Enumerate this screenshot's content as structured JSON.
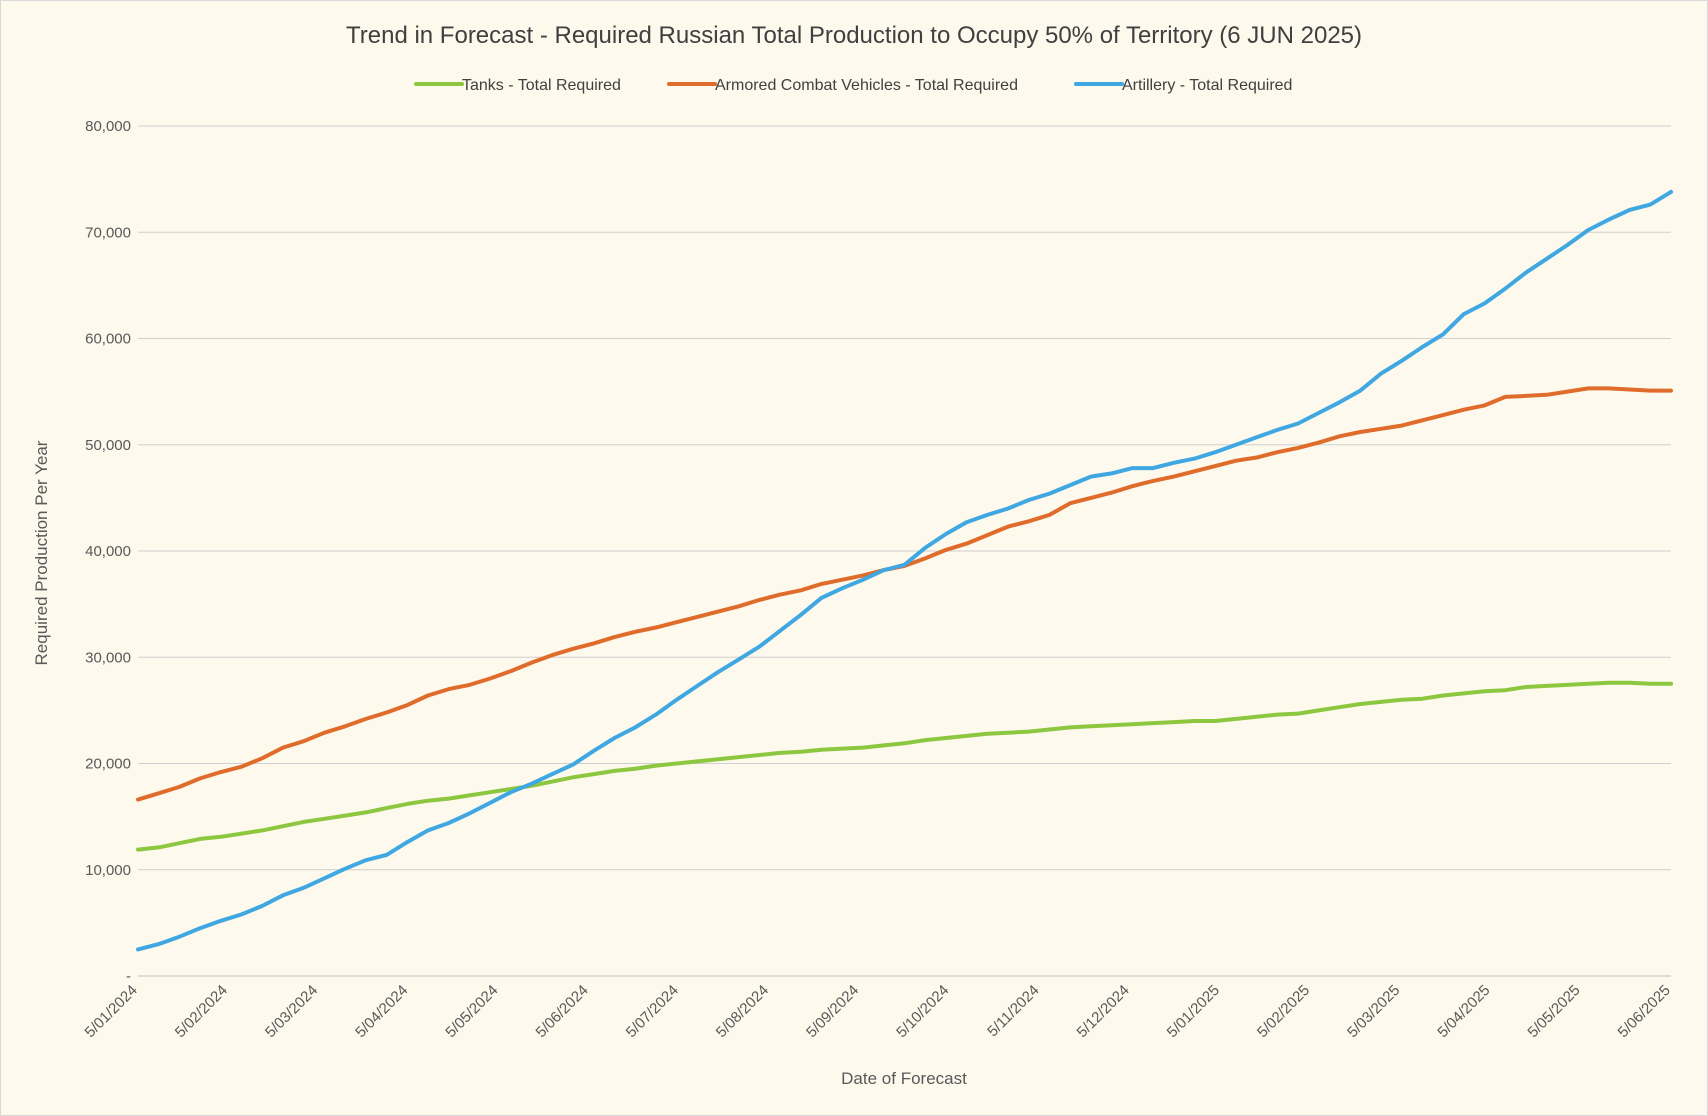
{
  "chart_data": {
    "type": "line",
    "title": "Trend in Forecast - Required Russian Total Production to Occupy 50% of Territory (6 JUN 2025)",
    "xlabel": "Date of Forecast",
    "ylabel": "Required Production Per Year",
    "x_tick_labels": [
      "5/01/2024",
      "5/02/2024",
      "5/03/2024",
      "5/04/2024",
      "5/05/2024",
      "5/06/2024",
      "5/07/2024",
      "5/08/2024",
      "5/09/2024",
      "5/10/2024",
      "5/11/2024",
      "5/12/2024",
      "5/01/2025",
      "5/02/2025",
      "5/03/2025",
      "5/04/2025",
      "5/05/2025",
      "5/06/2025"
    ],
    "y_tick_labels": [
      "-",
      "10,000",
      "20,000",
      "30,000",
      "40,000",
      "50,000",
      "60,000",
      "70,000",
      "80,000"
    ],
    "ylim": [
      0,
      80000
    ],
    "grid": "horizontal",
    "legend_position": "top",
    "series": [
      {
        "name": "Tanks - Total Required",
        "color": "#8dc63f",
        "values": [
          11900,
          12100,
          12500,
          12900,
          13100,
          13400,
          13700,
          14100,
          14500,
          14800,
          15100,
          15400,
          15800,
          16200,
          16500,
          16700,
          17000,
          17300,
          17600,
          17900,
          18300,
          18700,
          19000,
          19300,
          19500,
          19800,
          20000,
          20200,
          20400,
          20600,
          20800,
          21000,
          21100,
          21300,
          21400,
          21500,
          21700,
          21900,
          22200,
          22400,
          22600,
          22800,
          22900,
          23000,
          23200,
          23400,
          23500,
          23600,
          23700,
          23800,
          23900,
          24000,
          24000,
          24200,
          24400,
          24600,
          24700,
          25000,
          25300,
          25600,
          25800,
          26000,
          26100,
          26400,
          26600,
          26800,
          26900,
          27200,
          27300,
          27400,
          27500,
          27600,
          27600,
          27500,
          27500
        ]
      },
      {
        "name": "Armored Combat Vehicles - Total Required",
        "color": "#e06c2c",
        "values": [
          16600,
          17200,
          17800,
          18600,
          19200,
          19700,
          20500,
          21500,
          22100,
          22900,
          23500,
          24200,
          24800,
          25500,
          26400,
          27000,
          27400,
          28000,
          28700,
          29500,
          30200,
          30800,
          31300,
          31900,
          32400,
          32800,
          33300,
          33800,
          34300,
          34800,
          35400,
          35900,
          36300,
          36900,
          37300,
          37700,
          38200,
          38600,
          39300,
          40100,
          40700,
          41500,
          42300,
          42800,
          43400,
          44500,
          45000,
          45500,
          46100,
          46600,
          47000,
          47500,
          48000,
          48500,
          48800,
          49300,
          49700,
          50200,
          50800,
          51200,
          51500,
          51800,
          52300,
          52800,
          53300,
          53700,
          54500,
          54600,
          54700,
          55000,
          55300,
          55300,
          55200,
          55100,
          55100
        ]
      },
      {
        "name": "Artillery - Total Required",
        "color": "#3fa7e1",
        "values": [
          2500,
          3000,
          3700,
          4500,
          5200,
          5800,
          6600,
          7600,
          8300,
          9200,
          10100,
          10900,
          11400,
          12600,
          13700,
          14400,
          15300,
          16300,
          17300,
          18100,
          19000,
          19900,
          21200,
          22400,
          23400,
          24600,
          26000,
          27300,
          28600,
          29800,
          31000,
          32500,
          34000,
          35600,
          36500,
          37300,
          38200,
          38700,
          40300,
          41600,
          42700,
          43400,
          44000,
          44800,
          45400,
          46200,
          47000,
          47300,
          47800,
          47800,
          48300,
          48700,
          49300,
          50000,
          50700,
          51400,
          52000,
          53000,
          54000,
          55100,
          56700,
          57900,
          59200,
          60400,
          62300,
          63300,
          64700,
          66200,
          67500,
          68800,
          70200,
          71200,
          72100,
          72600,
          73800
        ]
      }
    ]
  }
}
